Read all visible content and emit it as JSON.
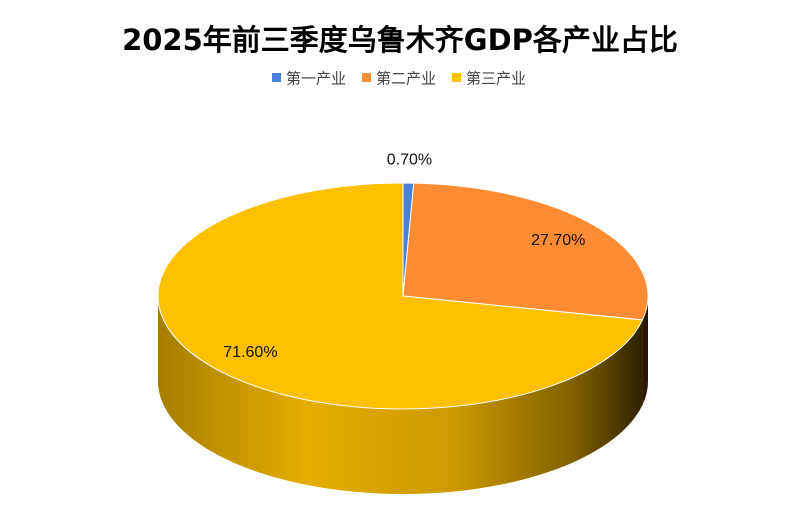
{
  "chart_data": {
    "type": "pie",
    "title": "2025年前三季度乌鲁木齐GDP各产业占比",
    "categories": [
      "第一产业",
      "第二产业",
      "第三产业"
    ],
    "values": [
      0.7,
      27.7,
      71.6
    ],
    "value_labels": [
      "0.70%",
      "27.70%",
      "71.60%"
    ],
    "colors": [
      "#4a7fd9",
      "#ff8c33",
      "#ffc000"
    ]
  }
}
